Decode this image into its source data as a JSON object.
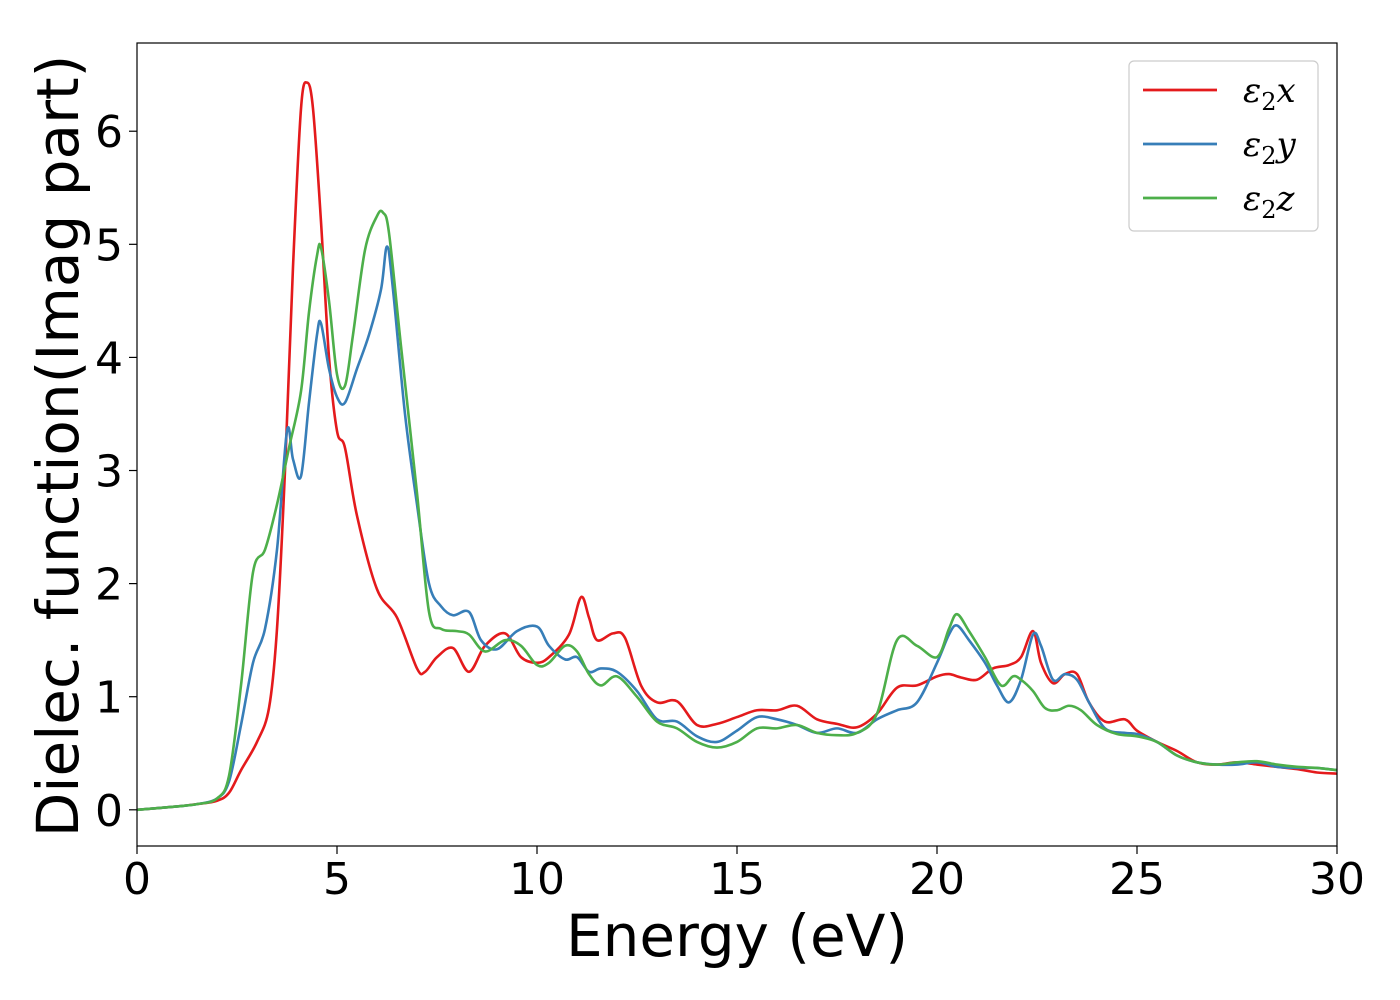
{
  "chart_data": {
    "type": "line",
    "title": "",
    "xlabel": "Energy (eV)",
    "ylabel": "Dielec. function(Imag part)",
    "xlim": [
      0,
      30
    ],
    "ylim": [
      -0.32,
      6.78
    ],
    "xticks": [
      0,
      5,
      10,
      15,
      20,
      25,
      30
    ],
    "yticks": [
      0,
      1,
      2,
      3,
      4,
      5,
      6
    ],
    "grid": false,
    "legend_position": "top-right",
    "series": [
      {
        "name": "ε2x",
        "legend_base": "ε",
        "legend_sub": "2",
        "legend_var": "x",
        "color": "#e41a1c",
        "x": [
          0,
          1,
          1.5,
          2,
          2.3,
          2.6,
          3.0,
          3.3,
          3.5,
          3.7,
          3.9,
          4.1,
          4.25,
          4.4,
          4.6,
          4.8,
          5.0,
          5.2,
          5.5,
          6.0,
          6.5,
          7.0,
          7.2,
          7.5,
          7.9,
          8.3,
          8.7,
          9.2,
          9.6,
          10.0,
          10.3,
          10.8,
          11.1,
          11.3,
          11.5,
          11.9,
          12.2,
          12.6,
          13.0,
          13.5,
          14.0,
          14.5,
          15.0,
          15.5,
          16.0,
          16.5,
          17.0,
          17.5,
          18.0,
          18.5,
          19.0,
          19.5,
          20.0,
          20.3,
          20.6,
          21.0,
          21.4,
          21.8,
          22.1,
          22.4,
          22.6,
          22.9,
          23.2,
          23.5,
          23.8,
          24.2,
          24.7,
          25.0,
          25.5,
          26.0,
          26.5,
          27.0,
          27.5,
          28.0,
          28.5,
          29.0,
          29.5,
          30.0
        ],
        "values": [
          0.0,
          0.03,
          0.05,
          0.08,
          0.15,
          0.35,
          0.6,
          0.9,
          1.6,
          3.0,
          4.8,
          6.2,
          6.43,
          6.2,
          5.2,
          4.0,
          3.35,
          3.2,
          2.6,
          1.95,
          1.7,
          1.25,
          1.22,
          1.35,
          1.43,
          1.22,
          1.45,
          1.56,
          1.35,
          1.3,
          1.35,
          1.55,
          1.88,
          1.7,
          1.5,
          1.56,
          1.52,
          1.1,
          0.95,
          0.96,
          0.75,
          0.76,
          0.82,
          0.88,
          0.88,
          0.92,
          0.8,
          0.76,
          0.73,
          0.85,
          1.08,
          1.1,
          1.18,
          1.2,
          1.17,
          1.15,
          1.25,
          1.28,
          1.35,
          1.58,
          1.3,
          1.12,
          1.2,
          1.2,
          0.95,
          0.78,
          0.8,
          0.7,
          0.6,
          0.52,
          0.42,
          0.4,
          0.42,
          0.4,
          0.38,
          0.36,
          0.33,
          0.32
        ]
      },
      {
        "name": "ε2y",
        "legend_base": "ε",
        "legend_sub": "2",
        "legend_var": "y",
        "color": "#377eb8",
        "x": [
          0,
          1,
          1.5,
          2,
          2.3,
          2.6,
          2.9,
          3.2,
          3.5,
          3.75,
          3.9,
          4.1,
          4.3,
          4.5,
          4.6,
          4.8,
          5.0,
          5.2,
          5.5,
          5.8,
          6.1,
          6.25,
          6.4,
          6.7,
          7.0,
          7.3,
          7.6,
          7.9,
          8.3,
          8.6,
          9.0,
          9.5,
          10.0,
          10.3,
          10.7,
          11.0,
          11.3,
          11.6,
          12.0,
          12.5,
          13.0,
          13.5,
          14.0,
          14.5,
          15.0,
          15.5,
          16.0,
          16.5,
          17.0,
          17.5,
          18.0,
          18.5,
          19.0,
          19.5,
          20.0,
          20.3,
          20.5,
          20.8,
          21.2,
          21.5,
          21.8,
          22.1,
          22.4,
          22.6,
          22.9,
          23.2,
          23.5,
          23.8,
          24.2,
          24.7,
          25.0,
          25.5,
          26.0,
          26.5,
          27.0,
          27.5,
          28.0,
          28.5,
          29.0,
          29.5,
          30.0
        ],
        "values": [
          0.0,
          0.03,
          0.05,
          0.1,
          0.25,
          0.75,
          1.3,
          1.6,
          2.3,
          3.35,
          3.1,
          2.95,
          3.6,
          4.2,
          4.3,
          3.9,
          3.65,
          3.6,
          3.9,
          4.2,
          4.6,
          4.98,
          4.6,
          3.5,
          2.7,
          2.0,
          1.8,
          1.72,
          1.75,
          1.5,
          1.42,
          1.58,
          1.62,
          1.45,
          1.33,
          1.35,
          1.22,
          1.25,
          1.22,
          1.05,
          0.8,
          0.78,
          0.65,
          0.6,
          0.7,
          0.82,
          0.8,
          0.75,
          0.68,
          0.72,
          0.68,
          0.8,
          0.88,
          0.95,
          1.3,
          1.55,
          1.63,
          1.5,
          1.3,
          1.1,
          0.95,
          1.15,
          1.55,
          1.45,
          1.15,
          1.2,
          1.15,
          0.95,
          0.72,
          0.68,
          0.67,
          0.6,
          0.48,
          0.42,
          0.4,
          0.4,
          0.42,
          0.38,
          0.37,
          0.37,
          0.35
        ]
      },
      {
        "name": "ε2z",
        "legend_base": "ε",
        "legend_sub": "2",
        "legend_var": "z",
        "color": "#4daf4a",
        "x": [
          0,
          1,
          1.5,
          2,
          2.3,
          2.6,
          2.9,
          3.2,
          3.5,
          3.8,
          4.1,
          4.3,
          4.5,
          4.6,
          4.8,
          5.0,
          5.2,
          5.4,
          5.7,
          6.0,
          6.15,
          6.3,
          6.6,
          7.0,
          7.3,
          7.6,
          8.0,
          8.3,
          8.7,
          9.2,
          9.6,
          10.0,
          10.3,
          10.7,
          11.0,
          11.3,
          11.6,
          12.0,
          12.5,
          13.0,
          13.5,
          14.0,
          14.5,
          15.0,
          15.5,
          16.0,
          16.5,
          17.0,
          17.5,
          18.0,
          18.5,
          19.0,
          19.5,
          20.0,
          20.3,
          20.5,
          20.8,
          21.2,
          21.6,
          21.9,
          22.1,
          22.4,
          22.7,
          23.0,
          23.3,
          23.6,
          24.0,
          24.5,
          25.0,
          25.5,
          26.0,
          26.5,
          27.0,
          27.5,
          28.0,
          28.5,
          29.0,
          29.5,
          30.0
        ],
        "values": [
          0.0,
          0.03,
          0.05,
          0.1,
          0.3,
          1.1,
          2.1,
          2.3,
          2.7,
          3.2,
          3.7,
          4.4,
          4.9,
          4.97,
          4.5,
          3.85,
          3.75,
          4.2,
          4.95,
          5.25,
          5.28,
          5.1,
          4.1,
          2.8,
          1.75,
          1.6,
          1.58,
          1.55,
          1.4,
          1.5,
          1.45,
          1.28,
          1.3,
          1.45,
          1.4,
          1.2,
          1.1,
          1.18,
          1.0,
          0.78,
          0.72,
          0.6,
          0.55,
          0.6,
          0.72,
          0.72,
          0.75,
          0.68,
          0.66,
          0.68,
          0.85,
          1.5,
          1.45,
          1.35,
          1.6,
          1.73,
          1.58,
          1.35,
          1.1,
          1.18,
          1.15,
          1.05,
          0.9,
          0.88,
          0.92,
          0.88,
          0.75,
          0.67,
          0.65,
          0.6,
          0.48,
          0.42,
          0.4,
          0.42,
          0.43,
          0.4,
          0.38,
          0.37,
          0.35
        ]
      }
    ]
  }
}
